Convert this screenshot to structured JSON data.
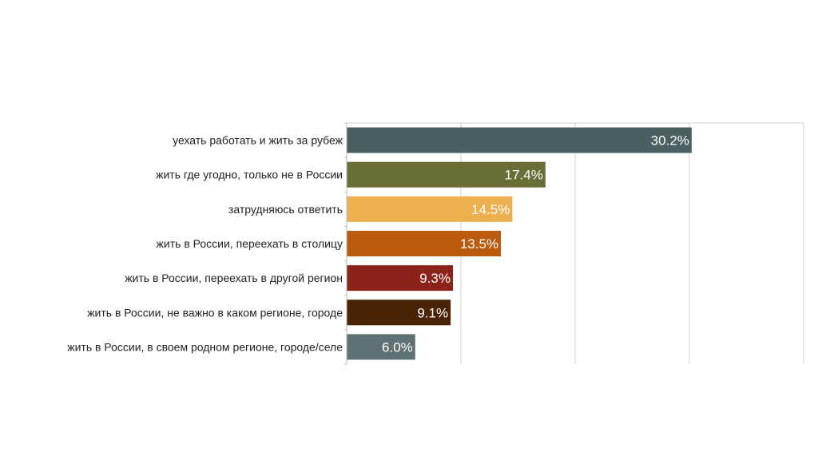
{
  "chart_data": {
    "type": "bar",
    "orientation": "horizontal",
    "title": "",
    "xlabel": "",
    "ylabel": "",
    "xlim": [
      0,
      40
    ],
    "grid": true,
    "gridlines_at": [
      10,
      20,
      30,
      40
    ],
    "categories": [
      "уехать работать и жить за рубеж",
      "жить где угодно, только не в России",
      "затрудняюсь ответить",
      "жить в России, переехать в столицу",
      "жить в России, переехать в другой регион",
      "жить в России, не важно в каком регионе, городе",
      "жить в России, в своем родном регионе, городе/селе"
    ],
    "values": [
      30.2,
      17.4,
      14.5,
      13.5,
      9.3,
      9.1,
      6.0
    ],
    "labels": [
      "30.2%",
      "17.4%",
      "14.5%",
      "13.5%",
      "9.3%",
      "9.1%",
      "6.0%"
    ],
    "colors": [
      "#4a5f60",
      "#6b6d36",
      "#eeb04f",
      "#bc5a0e",
      "#8b231b",
      "#4a2304",
      "#5e7274"
    ]
  }
}
